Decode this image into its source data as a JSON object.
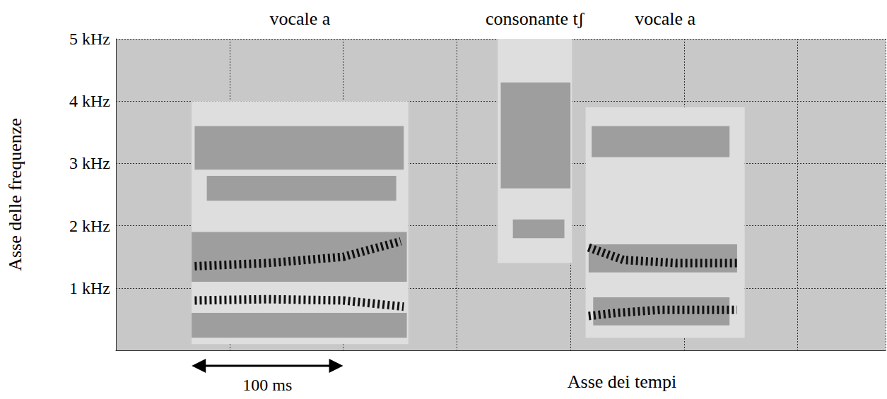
{
  "chart_data": {
    "type": "spectrogram",
    "ylabel": "Asse delle frequenze",
    "xlabel": "Asse dei tempi",
    "xlim": [
      0,
      508
    ],
    "xticks": [
      0,
      75,
      150,
      225,
      300,
      375,
      450
    ],
    "ylim": [
      0,
      5
    ],
    "yticks": [
      {
        "value": 1,
        "label": "1 kHz"
      },
      {
        "value": 2,
        "label": "2 kHz"
      },
      {
        "value": 3,
        "label": "3 kHz"
      },
      {
        "value": 4,
        "label": "4 kHz"
      },
      {
        "value": 5,
        "label": "5 kHz"
      }
    ],
    "grid": true,
    "tick_labels": "y",
    "segments": [
      {
        "label": "vocale a",
        "start": 50,
        "end": 193
      },
      {
        "label": "consonante tʃ",
        "start": 252,
        "end": 301
      },
      {
        "label": "vocale a",
        "start": 310,
        "end": 415
      }
    ],
    "scale_bar": {
      "label": "100 ms",
      "start": 50,
      "end": 150
    },
    "regions": [
      {
        "start": 50,
        "end": 193,
        "fmin": 0.1,
        "fmax": 4.0,
        "intensity": 1
      },
      {
        "start": 52,
        "end": 190,
        "fmin": 2.9,
        "fmax": 3.6,
        "intensity": 2
      },
      {
        "start": 60,
        "end": 185,
        "fmin": 2.4,
        "fmax": 2.8,
        "intensity": 2
      },
      {
        "start": 50,
        "end": 192,
        "fmin": 1.1,
        "fmax": 1.9,
        "intensity": 2
      },
      {
        "start": 50,
        "end": 192,
        "fmin": 0.2,
        "fmax": 0.6,
        "intensity": 2
      },
      {
        "start": 252,
        "end": 301,
        "fmin": 1.4,
        "fmax": 5.0,
        "intensity": 1
      },
      {
        "start": 254,
        "end": 300,
        "fmin": 2.6,
        "fmax": 4.3,
        "intensity": 2
      },
      {
        "start": 262,
        "end": 296,
        "fmin": 1.8,
        "fmax": 2.1,
        "intensity": 2
      },
      {
        "start": 310,
        "end": 415,
        "fmin": 0.2,
        "fmax": 3.9,
        "intensity": 1
      },
      {
        "start": 314,
        "end": 405,
        "fmin": 3.1,
        "fmax": 3.6,
        "intensity": 2
      },
      {
        "start": 312,
        "end": 410,
        "fmin": 1.25,
        "fmax": 1.7,
        "intensity": 2
      },
      {
        "start": 315,
        "end": 405,
        "fmin": 0.4,
        "fmax": 0.85,
        "intensity": 2
      }
    ],
    "series": [
      {
        "x": [
          52,
          100,
          150,
          190
        ],
        "values": [
          0.8,
          0.82,
          0.8,
          0.7
        ],
        "color": "#111111",
        "line_style": "dashed"
      },
      {
        "x": [
          52,
          100,
          150,
          188
        ],
        "values": [
          1.35,
          1.4,
          1.5,
          1.75
        ],
        "color": "#111111",
        "line_style": "dashed"
      },
      {
        "x": [
          312,
          330,
          360,
          410
        ],
        "values": [
          0.55,
          0.6,
          0.65,
          0.65
        ],
        "color": "#111111",
        "line_style": "dashed"
      },
      {
        "x": [
          312,
          335,
          370,
          410
        ],
        "values": [
          1.65,
          1.45,
          1.4,
          1.4
        ],
        "color": "#111111",
        "line_style": "dashed"
      }
    ]
  }
}
